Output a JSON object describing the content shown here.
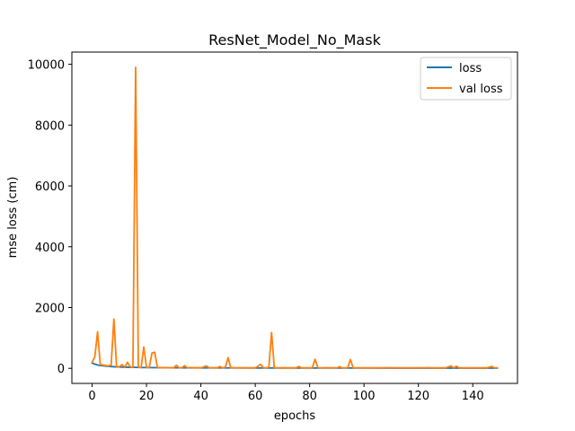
{
  "chart_data": {
    "type": "line",
    "title": "ResNet_Model_No_Mask",
    "xlabel": "epochs",
    "ylabel": "mse loss (cm)",
    "xlim": [
      -7.45,
      156.45
    ],
    "ylim": [
      -496,
      10402
    ],
    "xticks": [
      0,
      20,
      40,
      60,
      80,
      100,
      120,
      140
    ],
    "yticks": [
      0,
      2000,
      4000,
      6000,
      8000,
      10000
    ],
    "grid": false,
    "legend": {
      "placement": "top-right",
      "entries": [
        "loss",
        "val loss"
      ]
    },
    "series": [
      {
        "name": "loss",
        "color": "#1f77b4",
        "points": [
          [
            0,
            170
          ],
          [
            1,
            140
          ],
          [
            2,
            110
          ],
          [
            3,
            95
          ],
          [
            4,
            85
          ],
          [
            5,
            75
          ],
          [
            6,
            65
          ],
          [
            7,
            58
          ],
          [
            8,
            52
          ],
          [
            9,
            47
          ],
          [
            10,
            43
          ],
          [
            12,
            38
          ],
          [
            14,
            34
          ],
          [
            16,
            31
          ],
          [
            18,
            28
          ],
          [
            20,
            25
          ],
          [
            25,
            21
          ],
          [
            30,
            18
          ],
          [
            40,
            15
          ],
          [
            50,
            13
          ],
          [
            60,
            12
          ],
          [
            70,
            11
          ],
          [
            80,
            10
          ],
          [
            90,
            9
          ],
          [
            100,
            9
          ],
          [
            110,
            8
          ],
          [
            120,
            8
          ],
          [
            130,
            8
          ],
          [
            140,
            7
          ],
          [
            149,
            7
          ]
        ]
      },
      {
        "name": "val loss",
        "color": "#ff7f0e",
        "points": [
          [
            0,
            200
          ],
          [
            1,
            380
          ],
          [
            2,
            1200
          ],
          [
            3,
            120
          ],
          [
            4,
            110
          ],
          [
            5,
            90
          ],
          [
            6,
            80
          ],
          [
            7,
            110
          ],
          [
            8,
            1620
          ],
          [
            9,
            60
          ],
          [
            10,
            50
          ],
          [
            11,
            120
          ],
          [
            12,
            40
          ],
          [
            13,
            200
          ],
          [
            14,
            50
          ],
          [
            15,
            30
          ],
          [
            16,
            9900
          ],
          [
            17,
            40
          ],
          [
            18,
            20
          ],
          [
            19,
            700
          ],
          [
            20,
            30
          ],
          [
            21,
            30
          ],
          [
            22,
            500
          ],
          [
            23,
            530
          ],
          [
            24,
            30
          ],
          [
            25,
            20
          ],
          [
            26,
            20
          ],
          [
            30,
            15
          ],
          [
            31,
            100
          ],
          [
            32,
            20
          ],
          [
            33,
            20
          ],
          [
            34,
            90
          ],
          [
            35,
            20
          ],
          [
            36,
            25
          ],
          [
            40,
            15
          ],
          [
            42,
            80
          ],
          [
            43,
            20
          ],
          [
            46,
            15
          ],
          [
            47,
            60
          ],
          [
            48,
            15
          ],
          [
            49,
            40
          ],
          [
            50,
            350
          ],
          [
            51,
            20
          ],
          [
            55,
            15
          ],
          [
            60,
            15
          ],
          [
            62,
            130
          ],
          [
            63,
            20
          ],
          [
            64,
            15
          ],
          [
            65,
            40
          ],
          [
            66,
            1180
          ],
          [
            67,
            20
          ],
          [
            70,
            15
          ],
          [
            75,
            15
          ],
          [
            76,
            60
          ],
          [
            77,
            15
          ],
          [
            80,
            15
          ],
          [
            81,
            20
          ],
          [
            82,
            300
          ],
          [
            83,
            20
          ],
          [
            85,
            15
          ],
          [
            86,
            20
          ],
          [
            90,
            15
          ],
          [
            91,
            50
          ],
          [
            92,
            15
          ],
          [
            94,
            20
          ],
          [
            95,
            290
          ],
          [
            96,
            20
          ],
          [
            100,
            15
          ],
          [
            105,
            15
          ],
          [
            110,
            20
          ],
          [
            111,
            15
          ],
          [
            120,
            15
          ],
          [
            124,
            20
          ],
          [
            125,
            15
          ],
          [
            130,
            15
          ],
          [
            132,
            80
          ],
          [
            133,
            15
          ],
          [
            134,
            70
          ],
          [
            135,
            15
          ],
          [
            140,
            15
          ],
          [
            145,
            15
          ],
          [
            147,
            60
          ],
          [
            148,
            15
          ],
          [
            149,
            15
          ]
        ]
      }
    ]
  }
}
